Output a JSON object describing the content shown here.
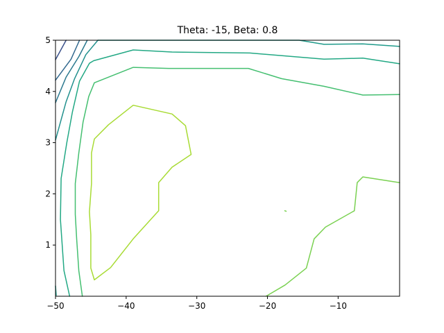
{
  "chart_data": {
    "type": "contour",
    "title": "Theta: -15, Beta: 0.8",
    "xlabel": "",
    "ylabel": "",
    "xlim": [
      -50,
      -1.3
    ],
    "ylim": [
      0,
      5
    ],
    "xticks": [
      -50,
      -40,
      -30,
      -20,
      -10
    ],
    "xtick_labels": [
      "−50",
      "−40",
      "−30",
      "−20",
      "−10"
    ],
    "yticks": [
      1,
      2,
      3,
      4,
      5
    ],
    "ytick_labels": [
      "1",
      "2",
      "3",
      "4",
      "5"
    ],
    "grid": false,
    "legend": "none",
    "contours": [
      {
        "color": "#3b528b",
        "points": [
          [
            -50,
            4.62
          ],
          [
            -48.5,
            5.0
          ]
        ]
      },
      {
        "color": "#31688e",
        "points": [
          [
            -50,
            4.22
          ],
          [
            -47.8,
            4.63
          ],
          [
            -46.6,
            5.0
          ]
        ]
      },
      {
        "color": "#2a788e",
        "points": [
          [
            -50,
            3.78
          ],
          [
            -48.5,
            4.28
          ],
          [
            -46.7,
            4.68
          ],
          [
            -45.5,
            5.0
          ]
        ]
      },
      {
        "color": "#21908d",
        "points": [
          [
            -50,
            3.05
          ],
          [
            -48.5,
            3.8
          ],
          [
            -47.3,
            4.25
          ],
          [
            -45.7,
            4.72
          ],
          [
            -44,
            5.0
          ]
        ]
      },
      {
        "color": "#1f9a8a",
        "points": [
          [
            -50,
            0.2
          ],
          [
            -49.9,
            0.02
          ]
        ]
      },
      {
        "color": "#1f9a8a",
        "points": [
          [
            -44,
            5.0
          ],
          [
            -15.5,
            5.02
          ],
          [
            -12,
            4.92
          ],
          [
            -6.5,
            4.93
          ],
          [
            -1.3,
            4.88
          ]
        ]
      },
      {
        "color": "#22a884",
        "points": [
          [
            -48,
            0.0
          ],
          [
            -48.8,
            0.5
          ],
          [
            -49.3,
            1.5
          ],
          [
            -49.2,
            2.3
          ],
          [
            -48.4,
            3.0
          ],
          [
            -47.6,
            3.6
          ],
          [
            -46.6,
            4.2
          ],
          [
            -45.2,
            4.55
          ],
          [
            -44.6,
            4.6
          ],
          [
            -39,
            4.81
          ],
          [
            -33.5,
            4.77
          ],
          [
            -22.5,
            4.75
          ],
          [
            -12,
            4.63
          ],
          [
            -6.5,
            4.65
          ],
          [
            -1.3,
            4.54
          ]
        ]
      },
      {
        "color": "#44bf70",
        "points": [
          [
            -46.2,
            0.0
          ],
          [
            -46.7,
            0.5
          ],
          [
            -47.0,
            1.1
          ],
          [
            -47.2,
            1.6
          ],
          [
            -47.2,
            2.2
          ],
          [
            -46.7,
            2.8
          ],
          [
            -46.1,
            3.4
          ],
          [
            -45.3,
            3.9
          ],
          [
            -44.5,
            4.17
          ],
          [
            -39,
            4.47
          ],
          [
            -34,
            4.45
          ],
          [
            -29,
            4.45
          ],
          [
            -22.7,
            4.45
          ],
          [
            -18,
            4.25
          ],
          [
            -12,
            4.1
          ],
          [
            -6.5,
            3.93
          ],
          [
            -1.3,
            3.94
          ]
        ]
      },
      {
        "color": "#7ad151",
        "points": [
          [
            -20.2,
            0.0
          ],
          [
            -17.5,
            0.22
          ],
          [
            -14.5,
            0.55
          ],
          [
            -13.4,
            1.12
          ],
          [
            -11.8,
            1.35
          ],
          [
            -7.7,
            1.67
          ],
          [
            -7.3,
            2.22
          ],
          [
            -6.5,
            2.33
          ],
          [
            -1.3,
            2.22
          ]
        ]
      },
      {
        "color": "#7ad151",
        "points": [
          [
            -17.55,
            1.67
          ],
          [
            -17.35,
            1.66
          ]
        ]
      },
      {
        "color": "#a8db34",
        "points": [
          [
            -44.5,
            0.32
          ],
          [
            -45.0,
            0.55
          ],
          [
            -45.0,
            1.2
          ],
          [
            -45.2,
            1.65
          ],
          [
            -44.9,
            2.2
          ],
          [
            -44.9,
            2.8
          ],
          [
            -44.5,
            3.07
          ],
          [
            -42.5,
            3.35
          ],
          [
            -39,
            3.73
          ],
          [
            -33.5,
            3.56
          ],
          [
            -31.6,
            3.33
          ],
          [
            -30.8,
            2.77
          ],
          [
            -33.5,
            2.52
          ],
          [
            -35.4,
            2.22
          ],
          [
            -35.4,
            1.67
          ],
          [
            -39,
            1.12
          ],
          [
            -42.2,
            0.56
          ],
          [
            -44.5,
            0.32
          ]
        ]
      }
    ]
  }
}
